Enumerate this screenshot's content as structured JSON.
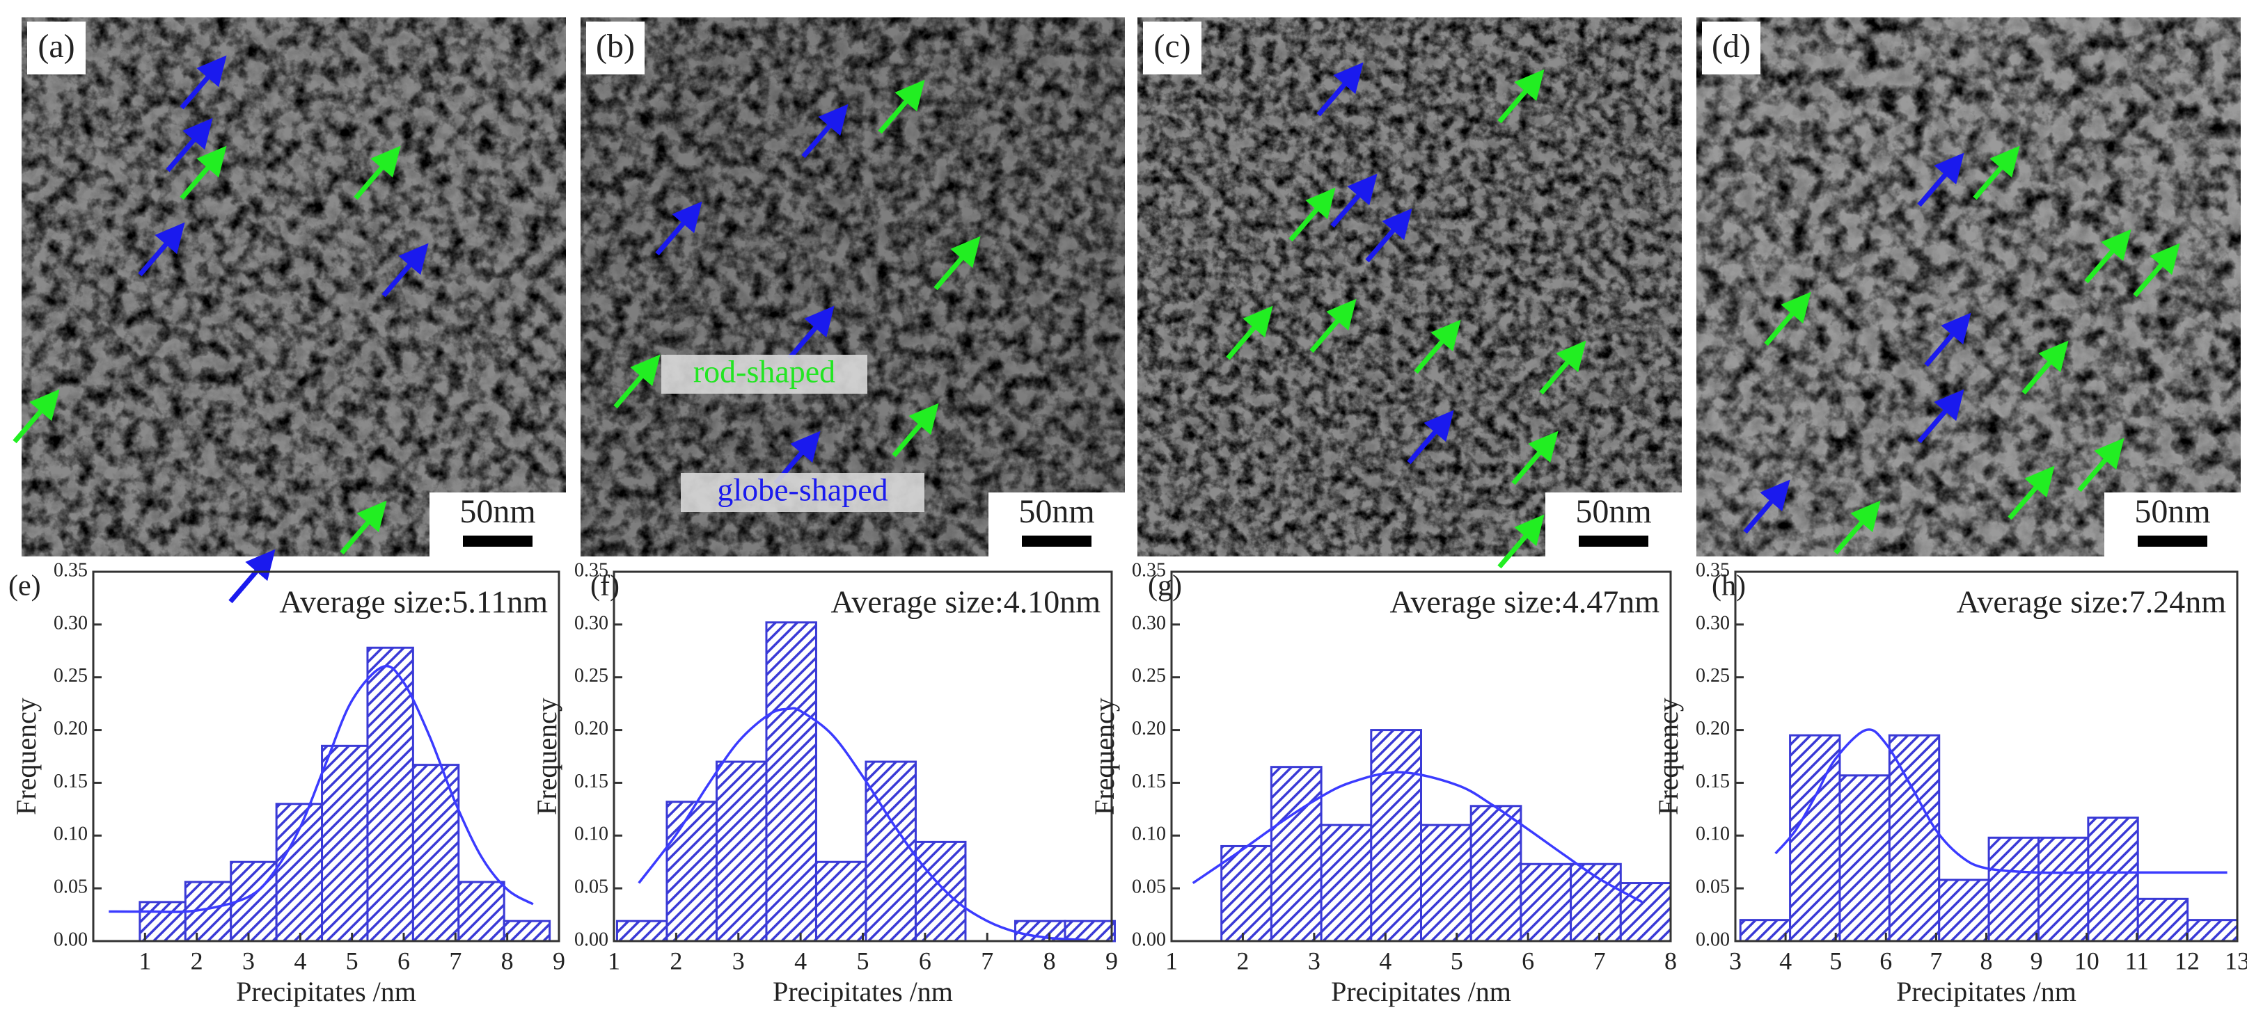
{
  "images": [
    {
      "label": "(a)",
      "scale_bar": "50nm"
    },
    {
      "label": "(b)",
      "scale_bar": "50nm"
    },
    {
      "label": "(c)",
      "scale_bar": "50nm"
    },
    {
      "label": "(d)",
      "scale_bar": "50nm"
    }
  ],
  "annotations": {
    "rod": "rod-shaped",
    "globe": "globe-shaped"
  },
  "chart_data": [
    {
      "type": "histogram",
      "panel_label": "(e)",
      "title": "Average size:5.11nm",
      "xlabel": "Precipitates /nm",
      "ylabel": "Frequency",
      "bins": [
        0.9,
        1.78,
        2.66,
        3.54,
        4.42,
        5.3,
        6.18,
        7.06,
        7.94,
        8.82
      ],
      "values": [
        0.037,
        0.056,
        0.075,
        0.13,
        0.185,
        0.278,
        0.167,
        0.056,
        0.019
      ],
      "color": "#3a3ad6",
      "xlim": [
        0,
        9
      ],
      "xticks": [
        1,
        2,
        3,
        4,
        5,
        6,
        7,
        8,
        9
      ],
      "ylim": [
        0,
        0.35
      ],
      "yticks": [
        {
          "value": 0,
          "label": "0.00"
        },
        {
          "value": 0.05,
          "label": "0.05"
        },
        {
          "value": 0.1,
          "label": "0.10"
        },
        {
          "value": 0.15,
          "label": "0.15"
        },
        {
          "value": 0.2,
          "label": "0.20"
        },
        {
          "value": 0.25,
          "label": "0.25"
        },
        {
          "value": 0.3,
          "label": "0.30"
        },
        {
          "value": 0.35,
          "label": "0.35"
        }
      ],
      "fit": {
        "color": "#3b3bff",
        "x": [
          0.3,
          1,
          2,
          3,
          3.5,
          4,
          4.5,
          5,
          5.6,
          6,
          6.5,
          7,
          7.5,
          8,
          8.5
        ],
        "values": [
          0.028,
          0.028,
          0.029,
          0.042,
          0.066,
          0.108,
          0.169,
          0.228,
          0.26,
          0.245,
          0.194,
          0.131,
          0.08,
          0.049,
          0.035
        ]
      }
    },
    {
      "type": "histogram",
      "panel_label": "(f)",
      "title": "Average size:4.10nm",
      "xlabel": "Precipitates /nm",
      "ylabel": "Frequency",
      "bins": [
        1.05,
        1.85,
        2.65,
        3.45,
        4.25,
        5.05,
        5.85,
        6.65,
        7.45,
        8.25,
        9.05
      ],
      "values": [
        0.019,
        0.132,
        0.17,
        0.302,
        0.075,
        0.17,
        0.094,
        0,
        0.019,
        0.019
      ],
      "color": "#3a3ad6",
      "xlim": [
        1,
        9
      ],
      "xticks": [
        1,
        2,
        3,
        4,
        5,
        6,
        7,
        8,
        9
      ],
      "ylim": [
        0,
        0.35
      ],
      "yticks": [
        {
          "value": 0,
          "label": "0.00"
        },
        {
          "value": 0.05,
          "label": "0.05"
        },
        {
          "value": 0.1,
          "label": "0.10"
        },
        {
          "value": 0.15,
          "label": "0.15"
        },
        {
          "value": 0.2,
          "label": "0.20"
        },
        {
          "value": 0.25,
          "label": "0.25"
        },
        {
          "value": 0.3,
          "label": "0.30"
        },
        {
          "value": 0.35,
          "label": "0.35"
        }
      ],
      "fit": {
        "color": "#3b3bff",
        "x": [
          1.4,
          2,
          2.5,
          3,
          3.5,
          3.8,
          4,
          4.5,
          5,
          5.5,
          6,
          6.5,
          7,
          7.5,
          8,
          8.6
        ],
        "values": [
          0.055,
          0.101,
          0.147,
          0.189,
          0.215,
          0.22,
          0.218,
          0.196,
          0.156,
          0.11,
          0.069,
          0.038,
          0.019,
          0.008,
          0.003,
          0.001
        ]
      }
    },
    {
      "type": "histogram",
      "panel_label": "(g)",
      "title": "Average size:4.47nm",
      "xlabel": "Precipitates /nm",
      "ylabel": "Frequency",
      "bins": [
        1.7,
        2.4,
        3.1,
        3.8,
        4.5,
        5.2,
        5.9,
        6.6,
        7.3,
        8.0
      ],
      "values": [
        0.09,
        0.165,
        0.11,
        0.2,
        0.11,
        0.128,
        0.073,
        0.073,
        0.055
      ],
      "color": "#3a3ad6",
      "xlim": [
        1,
        8
      ],
      "xticks": [
        1,
        2,
        3,
        4,
        5,
        6,
        7,
        8
      ],
      "ylim": [
        0,
        0.35
      ],
      "yticks": [
        {
          "value": 0,
          "label": "0.00"
        },
        {
          "value": 0.05,
          "label": "0.05"
        },
        {
          "value": 0.1,
          "label": "0.10"
        },
        {
          "value": 0.15,
          "label": "0.15"
        },
        {
          "value": 0.2,
          "label": "0.20"
        },
        {
          "value": 0.25,
          "label": "0.25"
        },
        {
          "value": 0.3,
          "label": "0.30"
        },
        {
          "value": 0.35,
          "label": "0.35"
        }
      ],
      "fit": {
        "color": "#3b3bff",
        "x": [
          1.3,
          2,
          2.5,
          3,
          3.5,
          4.2,
          5,
          5.5,
          6,
          6.5,
          7,
          7.6
        ],
        "values": [
          0.055,
          0.087,
          0.111,
          0.133,
          0.15,
          0.16,
          0.148,
          0.129,
          0.106,
          0.082,
          0.059,
          0.037
        ]
      }
    },
    {
      "type": "histogram",
      "panel_label": "(h)",
      "title": "Average size:7.24nm",
      "xlabel": "Precipitates /nm",
      "ylabel": "Frequency",
      "bins": [
        3.1,
        4.09,
        5.08,
        6.07,
        7.06,
        8.05,
        9.04,
        10.03,
        11.02,
        12.01,
        13.0
      ],
      "values": [
        0.02,
        0.195,
        0.157,
        0.195,
        0.058,
        0.098,
        0.098,
        0.117,
        0.04,
        0.02
      ],
      "color": "#3a3ad6",
      "xlim": [
        3,
        13
      ],
      "xticks": [
        3,
        4,
        5,
        6,
        7,
        8,
        9,
        10,
        11,
        12,
        13
      ],
      "ylim": [
        0,
        0.35
      ],
      "yticks": [
        {
          "value": 0,
          "label": "0.00"
        },
        {
          "value": 0.05,
          "label": "0.05"
        },
        {
          "value": 0.1,
          "label": "0.10"
        },
        {
          "value": 0.15,
          "label": "0.15"
        },
        {
          "value": 0.2,
          "label": "0.20"
        },
        {
          "value": 0.25,
          "label": "0.25"
        },
        {
          "value": 0.3,
          "label": "0.30"
        },
        {
          "value": 0.35,
          "label": "0.35"
        }
      ],
      "fit": {
        "color": "#3b3bff",
        "x": [
          3.8,
          4.2,
          4.6,
          5,
          5.6,
          6,
          6.5,
          7,
          7.5,
          8,
          9,
          10,
          11,
          12,
          12.8
        ],
        "values": [
          0.083,
          0.105,
          0.138,
          0.173,
          0.2,
          0.187,
          0.147,
          0.105,
          0.08,
          0.069,
          0.065,
          0.065,
          0.065,
          0.065,
          0.065
        ]
      }
    }
  ]
}
